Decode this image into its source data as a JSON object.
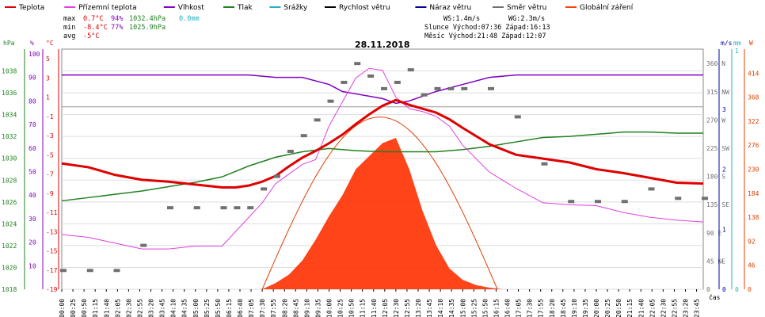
{
  "chart_data": {
    "type": "line",
    "title": "28.11.2018",
    "legend": [
      {
        "name": "Teplota",
        "color": "#e00000"
      },
      {
        "name": "Přízemní teplota",
        "color": "#e040e0"
      },
      {
        "name": "Vlhkost",
        "color": "#8000c0"
      },
      {
        "name": "Tlak",
        "color": "#208020"
      },
      {
        "name": "Srážky",
        "color": "#20b0c0"
      },
      {
        "name": "Rychlost větru",
        "color": "#000000"
      },
      {
        "name": "Náraz větru",
        "color": "#0000a0"
      },
      {
        "name": "Směr větru",
        "color": "#707070"
      },
      {
        "name": "Globální záření",
        "color": "#ff4000"
      }
    ],
    "stats": {
      "max_label": "max",
      "max_temp": "0.7°C",
      "max_hum": "94%",
      "max_press": "1032.4hPa",
      "max_rain": "0.0mm",
      "min_label": "min",
      "min_temp": "-8.4°C",
      "min_hum": "77%",
      "min_press": "1025.9hPa",
      "avg_label": "avg",
      "avg_temp": "-5°C"
    },
    "astro": {
      "ws": "WS:1.4m/s",
      "wg": "WG:2.3m/s",
      "sun": "Slunce Východ:07:36  Západ:16:13",
      "moon": "Měsíc  Východ:21:48  Západ:12:07"
    },
    "units": {
      "pressure": "hPa",
      "hum": "%",
      "temp": "°C",
      "wind": "m/s",
      "rain": "mm",
      "rad": "W",
      "time": "čas"
    },
    "axes": {
      "pressure_ticks": [
        "1018",
        "1020",
        "1022",
        "1024",
        "1026",
        "1028",
        "1030",
        "1032",
        "1034",
        "1036",
        "1038"
      ],
      "hum_ticks": [
        "10",
        "20",
        "30",
        "40",
        "50",
        "60",
        "70",
        "80",
        "90",
        "100"
      ],
      "temp_ticks": [
        "-19",
        "-17",
        "-15",
        "-13",
        "-11",
        "-9",
        "-7",
        "-5",
        "-3",
        "-1",
        "1",
        "3",
        "5"
      ],
      "dir_ticks": [
        "0",
        "45 NE",
        "90 E",
        "135 SE",
        "180 S",
        "225 SW",
        "270 W",
        "315 NW",
        "360 N"
      ],
      "wind_ticks": [
        "0",
        "1",
        "2",
        "3"
      ],
      "rain_ticks": [
        "0",
        "1"
      ],
      "rad_ticks": [
        "0",
        "46",
        "92",
        "138",
        "184",
        "230",
        "276",
        "322",
        "368",
        "414"
      ],
      "time_ticks": [
        "00:00",
        "00:25",
        "00:50",
        "01:15",
        "01:40",
        "02:05",
        "02:30",
        "02:55",
        "03:20",
        "03:45",
        "04:10",
        "04:35",
        "05:00",
        "05:25",
        "05:50",
        "06:15",
        "06:40",
        "07:05",
        "07:30",
        "07:55",
        "08:20",
        "08:45",
        "09:10",
        "09:35",
        "10:00",
        "10:25",
        "10:50",
        "11:15",
        "11:40",
        "12:05",
        "12:30",
        "12:55",
        "13:20",
        "13:45",
        "14:10",
        "14:35",
        "15:00",
        "15:25",
        "15:50",
        "16:15",
        "16:40",
        "17:05",
        "17:30",
        "17:55",
        "18:20",
        "18:45",
        "19:10",
        "19:35",
        "20:00",
        "20:25",
        "20:50",
        "21:15",
        "21:40",
        "22:05",
        "22:30",
        "22:55",
        "23:20",
        "23:45"
      ],
      "pressure_range": [
        1018,
        1040
      ],
      "temp_range": [
        -19,
        6
      ],
      "hum_range": [
        0,
        102
      ],
      "wind_range": [
        0,
        4
      ],
      "rad_range": [
        0,
        460
      ],
      "dir_range": [
        0,
        383
      ],
      "x_range_hours": [
        0,
        24
      ]
    },
    "series": [
      {
        "name": "Teplota",
        "x": [
          0,
          1,
          2,
          3,
          4,
          5,
          6,
          6.5,
          7,
          7.5,
          8,
          8.5,
          9,
          9.5,
          10,
          10.5,
          11,
          11.5,
          12,
          12.5,
          13,
          13.5,
          14,
          14.5,
          15,
          16,
          17,
          18,
          19,
          20,
          21,
          22,
          23,
          24
        ],
        "values": [
          -5.9,
          -6.3,
          -7.1,
          -7.6,
          -7.8,
          -8.1,
          -8.4,
          -8.4,
          -8.2,
          -7.8,
          -7.2,
          -6.2,
          -5.3,
          -4.6,
          -3.8,
          -2.9,
          -1.8,
          -0.8,
          0.1,
          0.7,
          0.2,
          -0.2,
          -0.6,
          -1.3,
          -2.2,
          -3.9,
          -5.0,
          -5.4,
          -5.8,
          -6.5,
          -6.9,
          -7.4,
          -7.9,
          -8.0
        ]
      },
      {
        "name": "Přízemní teplota",
        "x": [
          0,
          1,
          2,
          3,
          4,
          5,
          6,
          7,
          7.5,
          8,
          8.5,
          9,
          9.5,
          10,
          10.5,
          11,
          11.5,
          12,
          12.5,
          13,
          13.5,
          14,
          14.5,
          15,
          16,
          17,
          18,
          19,
          20,
          21,
          22,
          23,
          24
        ],
        "values": [
          -13.3,
          -13.6,
          -14.2,
          -14.8,
          -14.8,
          -14.5,
          -14.5,
          -11.5,
          -10.0,
          -8.0,
          -7.0,
          -6.0,
          -5.5,
          -2.0,
          0.5,
          3.0,
          4.0,
          3.8,
          1.0,
          -0.2,
          -0.5,
          -1.0,
          -2.0,
          -4.0,
          -6.8,
          -8.5,
          -10.0,
          -10.2,
          -10.3,
          -11.0,
          -11.5,
          -11.8,
          -12.0
        ]
      },
      {
        "name": "Vlhkost",
        "x": [
          0,
          1,
          2,
          3,
          4,
          5,
          6,
          7,
          8,
          9,
          10,
          10.5,
          11,
          11.5,
          12,
          12.5,
          13,
          13.5,
          14,
          15,
          16,
          17,
          18,
          19,
          20,
          21,
          22,
          23,
          24
        ],
        "values": [
          91,
          91,
          91,
          91,
          91,
          91,
          91,
          91,
          90,
          90,
          87,
          84,
          83,
          82,
          81,
          79,
          80,
          82,
          84,
          87,
          90,
          91,
          91,
          91,
          91,
          91,
          91,
          91,
          91
        ]
      },
      {
        "name": "Tlak",
        "x": [
          0,
          1,
          2,
          3,
          4,
          5,
          6,
          7,
          8,
          9,
          10,
          11,
          12,
          13,
          14,
          15,
          16,
          17,
          18,
          19,
          20,
          21,
          22,
          23,
          24
        ],
        "values": [
          1026.1,
          1026.4,
          1026.7,
          1027.0,
          1027.4,
          1027.8,
          1028.3,
          1029.3,
          1030.1,
          1030.6,
          1030.9,
          1030.7,
          1030.6,
          1030.6,
          1030.6,
          1030.8,
          1031.1,
          1031.5,
          1031.9,
          1032.0,
          1032.2,
          1032.4,
          1032.4,
          1032.3,
          1032.3
        ]
      },
      {
        "name": "Globální záření",
        "x": [
          0,
          7.5,
          8,
          8.5,
          9,
          9.5,
          10,
          10.5,
          11,
          11.5,
          12,
          12.5,
          13,
          13.5,
          14,
          14.5,
          15,
          15.5,
          16,
          16.5,
          24
        ],
        "values": [
          0,
          0,
          12,
          28,
          55,
          95,
          140,
          180,
          230,
          255,
          280,
          290,
          230,
          150,
          85,
          40,
          18,
          8,
          3,
          0,
          0
        ]
      },
      {
        "name": "Směr větru",
        "x": [
          0,
          1,
          2,
          3,
          4,
          5,
          6,
          6.5,
          7,
          7.5,
          8,
          8.5,
          9,
          9.5,
          10,
          10.5,
          11,
          11.5,
          12,
          12.5,
          13,
          13.5,
          14,
          14.5,
          15,
          16,
          17,
          18,
          19,
          20,
          21,
          22,
          23,
          24
        ],
        "values": [
          30,
          30,
          30,
          70,
          130,
          130,
          130,
          130,
          130,
          160,
          180,
          220,
          245,
          270,
          300,
          330,
          360,
          340,
          320,
          330,
          350,
          310,
          320,
          320,
          320,
          320,
          275,
          200,
          140,
          140,
          140,
          160,
          145,
          145
        ]
      }
    ]
  }
}
